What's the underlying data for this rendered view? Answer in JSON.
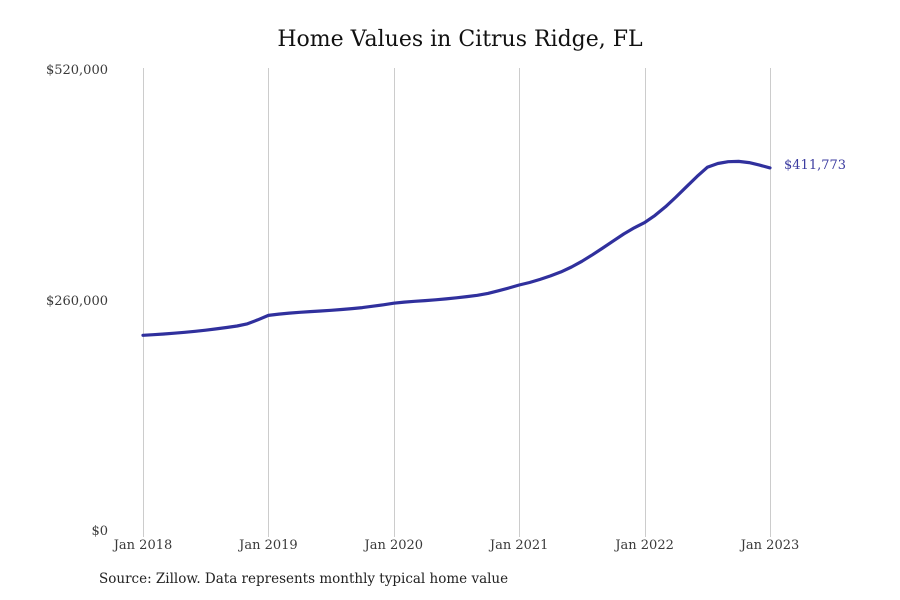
{
  "title": "Home Values in Citrus Ridge, FL",
  "source_note": "Source: Zillow. Data represents monthly typical home value",
  "colors": {
    "line": "#30309d",
    "end_label": "#3c3ca0",
    "gridline": "#cccccc",
    "tick_text": "#3a3a3a",
    "title_text": "#111111",
    "background": "#ffffff"
  },
  "chart_data": {
    "type": "line",
    "title": "Home Values in Citrus Ridge, FL",
    "xlabel": "",
    "ylabel": "",
    "ylim": [
      0,
      520000
    ],
    "y_ticks": [
      0,
      260000,
      520000
    ],
    "y_tick_labels": [
      "$0",
      "$260,000",
      "$520,000"
    ],
    "x_tick_labels": [
      "Jan 2018",
      "Jan 2019",
      "Jan 2020",
      "Jan 2021",
      "Jan 2022",
      "Jan 2023"
    ],
    "grid": "vertical-only",
    "legend": "none",
    "last_value_label": "$411,773",
    "x": [
      "Jan 2018",
      "Feb 2018",
      "Mar 2018",
      "Apr 2018",
      "May 2018",
      "Jun 2018",
      "Jul 2018",
      "Aug 2018",
      "Sep 2018",
      "Oct 2018",
      "Nov 2018",
      "Dec 2018",
      "Jan 2019",
      "Feb 2019",
      "Mar 2019",
      "Apr 2019",
      "May 2019",
      "Jun 2019",
      "Jul 2019",
      "Aug 2019",
      "Sep 2019",
      "Oct 2019",
      "Nov 2019",
      "Dec 2019",
      "Jan 2020",
      "Feb 2020",
      "Mar 2020",
      "Apr 2020",
      "May 2020",
      "Jun 2020",
      "Jul 2020",
      "Aug 2020",
      "Sep 2020",
      "Oct 2020",
      "Nov 2020",
      "Dec 2020",
      "Jan 2021",
      "Feb 2021",
      "Mar 2021",
      "Apr 2021",
      "May 2021",
      "Jun 2021",
      "Jul 2021",
      "Aug 2021",
      "Sep 2021",
      "Oct 2021",
      "Nov 2021",
      "Dec 2021",
      "Jan 2022",
      "Feb 2022",
      "Mar 2022",
      "Apr 2022",
      "May 2022",
      "Jun 2022",
      "Jul 2022",
      "Aug 2022",
      "Sep 2022",
      "Oct 2022",
      "Nov 2022",
      "Dec 2022",
      "Jan 2023"
    ],
    "values": [
      223000,
      223700,
      224500,
      225400,
      226400,
      227500,
      228800,
      230200,
      231800,
      233500,
      236000,
      240500,
      245500,
      246900,
      248000,
      248900,
      249700,
      250400,
      251200,
      252100,
      253100,
      254300,
      255800,
      257400,
      259200,
      260400,
      261300,
      262100,
      263000,
      264100,
      265300,
      266600,
      268100,
      270300,
      273200,
      276300,
      279700,
      282600,
      286000,
      290000,
      294500,
      300000,
      306500,
      313800,
      321500,
      329500,
      337300,
      344200,
      350100,
      358200,
      368000,
      379000,
      390500,
      402000,
      412500,
      416800,
      418800,
      419200,
      417800,
      415000,
      411773
    ]
  }
}
